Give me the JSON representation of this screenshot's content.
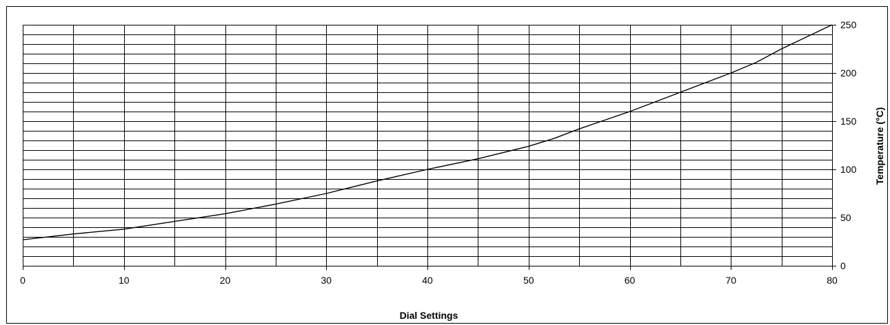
{
  "chart_data": {
    "type": "line",
    "title": "",
    "xlabel": "Dial Settings",
    "ylabel": "Temperature (°C)",
    "xlim": [
      0,
      80
    ],
    "ylim": [
      0,
      250
    ],
    "x_ticks": [
      0,
      10,
      20,
      30,
      40,
      50,
      60,
      70,
      80
    ],
    "y_ticks": [
      0,
      50,
      100,
      150,
      200,
      250
    ],
    "x_grid_step": 5,
    "y_grid_step": 10,
    "grid": true,
    "y_axis_side": "right",
    "legend": "none",
    "line_color": "#000000",
    "grid_color": "#000000",
    "series": [
      {
        "x": [
          0,
          5,
          10,
          15,
          20,
          25,
          30,
          35,
          40,
          45,
          50,
          52.5,
          55,
          60,
          65,
          70,
          72.5,
          75,
          80
        ],
        "y": [
          27,
          33,
          38,
          46,
          54,
          64,
          75,
          88,
          100,
          111,
          124,
          132,
          142,
          160,
          180,
          200,
          211,
          225,
          250
        ]
      }
    ]
  }
}
